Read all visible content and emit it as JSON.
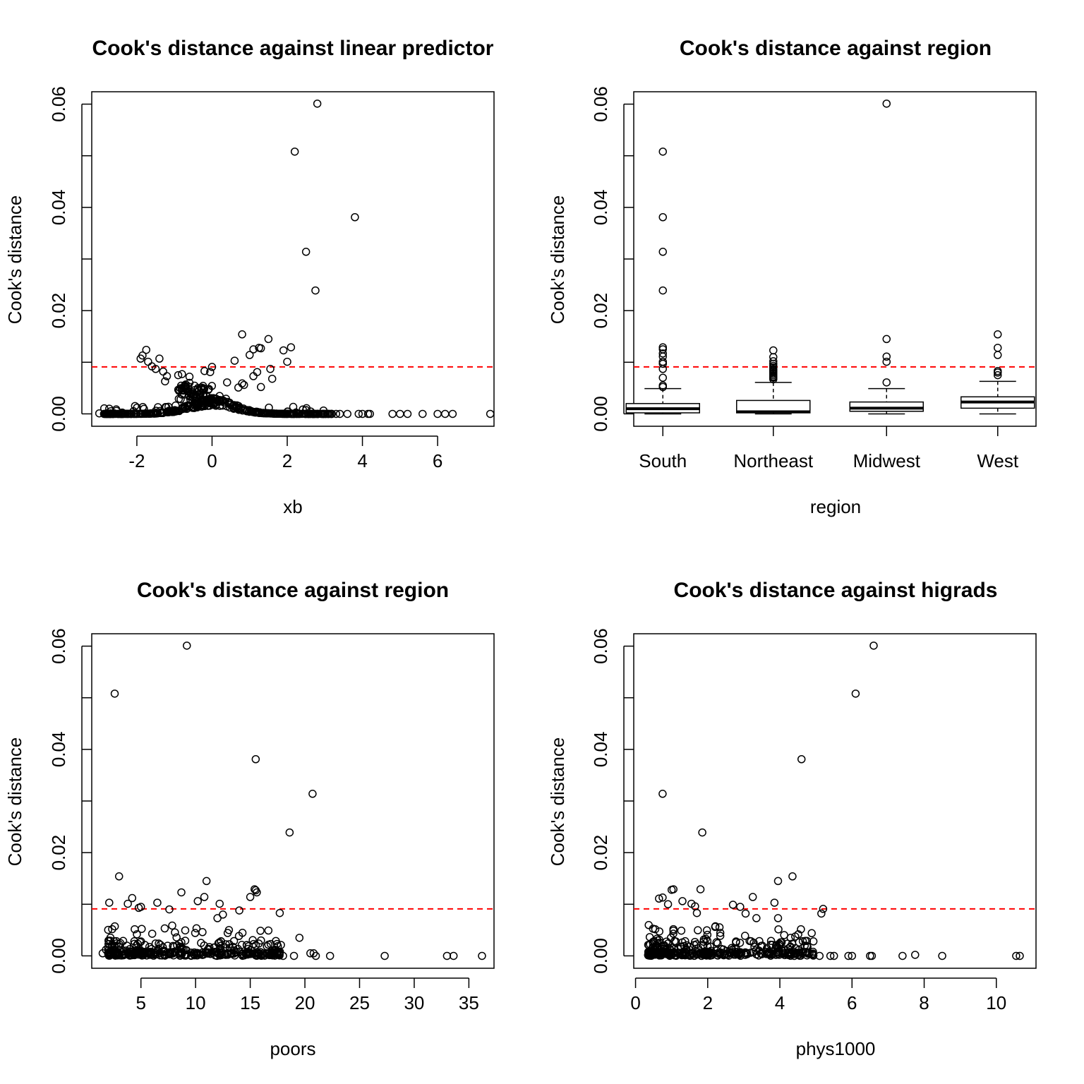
{
  "chart_data": [
    {
      "type": "scatter",
      "title": "Cook's distance against linear predictor",
      "xlabel": "xb",
      "ylabel": "Cook's distance",
      "xlim": [
        -3.2,
        7.5
      ],
      "ylim": [
        -0.0024,
        0.0624
      ],
      "xticks": [
        -2,
        0,
        2,
        4,
        6
      ],
      "xtick_labels": [
        "-2",
        "0",
        "2",
        "4",
        "6"
      ],
      "yticks": [
        0,
        0.01,
        0.02,
        0.03,
        0.04,
        0.05,
        0.06
      ],
      "ytick_labels": [
        "0.00",
        "",
        "0.02",
        "",
        "0.04",
        "",
        "0.06"
      ],
      "threshold": 0.0091,
      "threshold_color": "#ff0000",
      "generated": "hump",
      "points": [
        [
          2.8,
          0.0601
        ],
        [
          2.2,
          0.0508
        ],
        [
          3.8,
          0.0381
        ],
        [
          2.5,
          0.0314
        ],
        [
          2.75,
          0.0239
        ],
        [
          0.8,
          0.0154
        ],
        [
          1.5,
          0.0145
        ],
        [
          2.1,
          0.0129
        ],
        [
          1.25,
          0.0128
        ],
        [
          1.3,
          0.0127
        ],
        [
          1.9,
          0.0123
        ],
        [
          1.0,
          0.0114
        ],
        [
          1.1,
          0.0125
        ],
        [
          0.6,
          0.0103
        ],
        [
          2.0,
          0.0101
        ],
        [
          1.55,
          0.0087
        ],
        [
          1.2,
          0.0081
        ],
        [
          1.1,
          0.0073
        ],
        [
          1.6,
          0.0068
        ],
        [
          1.3,
          0.0052
        ],
        [
          0.0,
          0.0091
        ],
        [
          -0.2,
          0.0083
        ],
        [
          -0.05,
          0.0081
        ],
        [
          0.4,
          0.0061
        ],
        [
          0.8,
          0.0059
        ],
        [
          0.85,
          0.0056
        ],
        [
          0.7,
          0.0051
        ],
        [
          -1.9,
          0.0107
        ],
        [
          -1.85,
          0.0113
        ],
        [
          -1.75,
          0.0124
        ],
        [
          -1.7,
          0.0101
        ],
        [
          -1.6,
          0.0092
        ],
        [
          -1.4,
          0.0107
        ],
        [
          -1.5,
          0.0087
        ],
        [
          -1.3,
          0.0082
        ],
        [
          -1.2,
          0.0073
        ],
        [
          -1.25,
          0.0063
        ],
        [
          -0.9,
          0.0075
        ],
        [
          -0.8,
          0.0077
        ],
        [
          -0.6,
          0.0072
        ],
        [
          -0.6,
          0.006
        ],
        [
          -0.8,
          0.0049
        ],
        [
          -0.7,
          0.0057
        ],
        [
          -3.0,
          0.0001
        ],
        [
          -2.8,
          0.0001
        ],
        [
          -2.7,
          0.0001
        ],
        [
          -2.6,
          0.0001
        ],
        [
          4.8,
          0.0
        ],
        [
          5.0,
          0.0
        ],
        [
          5.2,
          0.0
        ],
        [
          5.6,
          0.0
        ],
        [
          6.0,
          0.0
        ],
        [
          6.2,
          0.0
        ],
        [
          6.4,
          0.0
        ],
        [
          7.4,
          0.0
        ],
        [
          3.4,
          0.0
        ],
        [
          3.6,
          0.0
        ],
        [
          3.9,
          0.0
        ],
        [
          4.0,
          0.0
        ],
        [
          4.2,
          0.0
        ],
        [
          4.15,
          0.0
        ],
        [
          2.9,
          0.0
        ],
        [
          3.1,
          0.0
        ],
        [
          3.3,
          0.0
        ]
      ]
    },
    {
      "type": "box",
      "title": "Cook's distance against region",
      "xlabel": "region",
      "ylabel": "Cook's distance",
      "ylim": [
        -0.0024,
        0.0624
      ],
      "categories": [
        "South",
        "Northeast",
        "Midwest",
        "West"
      ],
      "yticks": [
        0,
        0.01,
        0.02,
        0.03,
        0.04,
        0.05,
        0.06
      ],
      "ytick_labels": [
        "0.00",
        "",
        "0.02",
        "",
        "0.04",
        "",
        "0.06"
      ],
      "threshold": 0.0091,
      "threshold_color": "#ff0000",
      "boxes": [
        {
          "min": 0.0,
          "q1": 0.0002,
          "median": 0.001,
          "q3": 0.002,
          "max": 0.0049,
          "outliers": [
            0.0508,
            0.0381,
            0.0314,
            0.0239,
            0.0129,
            0.0125,
            0.0117,
            0.0111,
            0.0101,
            0.0097,
            0.0087,
            0.007,
            0.0055,
            0.0052
          ]
        },
        {
          "min": 0.0,
          "q1": 0.0002,
          "median": 0.0004,
          "q3": 0.0026,
          "max": 0.0061,
          "outliers": [
            0.0123,
            0.011,
            0.0102,
            0.0097,
            0.0093,
            0.009,
            0.0087,
            0.0085,
            0.0083,
            0.0081,
            0.0078,
            0.0075,
            0.0072,
            0.007,
            0.0067
          ]
        },
        {
          "min": 0.0,
          "q1": 0.0005,
          "median": 0.0011,
          "q3": 0.0023,
          "max": 0.0049,
          "outliers": [
            0.0601,
            0.0145,
            0.0111,
            0.0101,
            0.0061
          ]
        },
        {
          "min": 0.0,
          "q1": 0.0011,
          "median": 0.0023,
          "q3": 0.0033,
          "max": 0.0063,
          "outliers": [
            0.0154,
            0.0128,
            0.0114,
            0.0083,
            0.008,
            0.0075
          ]
        }
      ]
    },
    {
      "type": "scatter",
      "title": "Cook's distance against region",
      "xlabel": "poors",
      "ylabel": "Cook's distance",
      "xlim": [
        0.5,
        37.3
      ],
      "ylim": [
        -0.0024,
        0.0624
      ],
      "xticks": [
        5,
        10,
        15,
        20,
        25,
        30,
        35
      ],
      "xtick_labels": [
        "5",
        "10",
        "15",
        "20",
        "25",
        "30",
        "35"
      ],
      "yticks": [
        0,
        0.01,
        0.02,
        0.03,
        0.04,
        0.05,
        0.06
      ],
      "ytick_labels": [
        "0.00",
        "",
        "0.02",
        "",
        "0.04",
        "",
        "0.06"
      ],
      "threshold": 0.0091,
      "threshold_color": "#ff0000",
      "generated": "cluster",
      "points": [
        [
          9.2,
          0.0601
        ],
        [
          2.6,
          0.0508
        ],
        [
          15.5,
          0.0381
        ],
        [
          20.7,
          0.0314
        ],
        [
          18.6,
          0.0239
        ],
        [
          3.0,
          0.0154
        ],
        [
          11.0,
          0.0145
        ],
        [
          15.4,
          0.0129
        ],
        [
          15.5,
          0.0127
        ],
        [
          15.6,
          0.0123
        ],
        [
          8.7,
          0.0123
        ],
        [
          10.8,
          0.0114
        ],
        [
          15.0,
          0.0114
        ],
        [
          4.2,
          0.0112
        ],
        [
          10.2,
          0.0106
        ],
        [
          2.1,
          0.0103
        ],
        [
          3.8,
          0.0101
        ],
        [
          6.5,
          0.0103
        ],
        [
          12.2,
          0.0101
        ],
        [
          4.8,
          0.0093
        ],
        [
          5.0,
          0.0095
        ],
        [
          17.7,
          0.0083
        ],
        [
          14.0,
          0.0088
        ],
        [
          7.6,
          0.009
        ],
        [
          12.5,
          0.008
        ],
        [
          12.0,
          0.0073
        ],
        [
          19.5,
          0.0035
        ],
        [
          20.5,
          0.0005
        ],
        [
          20.8,
          0.0005
        ],
        [
          27.3,
          0.0
        ],
        [
          33.0,
          0.0
        ],
        [
          33.6,
          0.0
        ],
        [
          36.2,
          0.0
        ],
        [
          22.3,
          0.0
        ],
        [
          21.0,
          0.0
        ],
        [
          19.0,
          0.0
        ],
        [
          18.0,
          0.0
        ],
        [
          1.5,
          0.0005
        ],
        [
          1.8,
          0.0012
        ]
      ]
    },
    {
      "type": "scatter",
      "title": "Cook's distance against higrads",
      "xlabel": "phys1000",
      "ylabel": "Cook's distance",
      "xlim": [
        -0.05,
        11.1
      ],
      "ylim": [
        -0.0024,
        0.0624
      ],
      "xticks": [
        0,
        2,
        4,
        6,
        8,
        10
      ],
      "xtick_labels": [
        "0",
        "2",
        "4",
        "6",
        "8",
        "10"
      ],
      "yticks": [
        0,
        0.01,
        0.02,
        0.03,
        0.04,
        0.05,
        0.06
      ],
      "ytick_labels": [
        "0.00",
        "",
        "0.02",
        "",
        "0.04",
        "",
        "0.06"
      ],
      "threshold": 0.0091,
      "threshold_color": "#ff0000",
      "generated": "cluster",
      "points": [
        [
          6.6,
          0.0601
        ],
        [
          6.1,
          0.0508
        ],
        [
          4.6,
          0.0381
        ],
        [
          0.75,
          0.0314
        ],
        [
          1.85,
          0.0239
        ],
        [
          4.35,
          0.0154
        ],
        [
          3.95,
          0.0145
        ],
        [
          1.0,
          0.0128
        ],
        [
          1.05,
          0.0129
        ],
        [
          1.8,
          0.0129
        ],
        [
          3.25,
          0.0114
        ],
        [
          0.65,
          0.0111
        ],
        [
          0.75,
          0.0113
        ],
        [
          1.3,
          0.0106
        ],
        [
          3.85,
          0.0103
        ],
        [
          1.55,
          0.0101
        ],
        [
          2.7,
          0.0099
        ],
        [
          0.9,
          0.01
        ],
        [
          1.65,
          0.0096
        ],
        [
          2.9,
          0.0095
        ],
        [
          5.2,
          0.0091
        ],
        [
          5.15,
          0.0082
        ],
        [
          3.05,
          0.0082
        ],
        [
          1.7,
          0.0083
        ],
        [
          3.35,
          0.0073
        ],
        [
          3.95,
          0.0073
        ],
        [
          4.3,
          0.0035
        ],
        [
          4.75,
          0.0029
        ],
        [
          4.5,
          0.0002
        ],
        [
          4.4,
          0.0
        ],
        [
          5.1,
          0.0
        ],
        [
          5.4,
          0.0
        ],
        [
          5.5,
          0.0
        ],
        [
          5.9,
          0.0
        ],
        [
          6.0,
          0.0
        ],
        [
          6.5,
          0.0
        ],
        [
          6.55,
          0.0
        ],
        [
          7.4,
          0.0
        ],
        [
          7.75,
          0.0002
        ],
        [
          8.5,
          0.0
        ],
        [
          10.55,
          0.0
        ],
        [
          10.65,
          0.0
        ],
        [
          0.35,
          0.0002
        ],
        [
          0.4,
          0.0002
        ]
      ]
    }
  ]
}
